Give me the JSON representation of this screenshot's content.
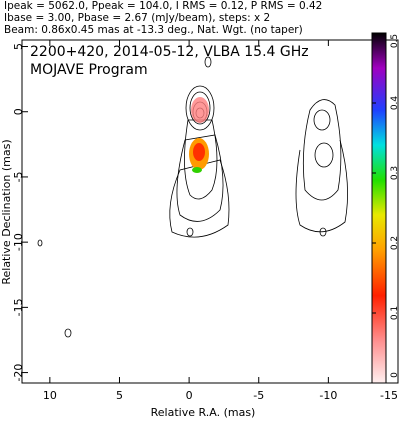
{
  "chart_data": {
    "type": "contour",
    "header": [
      "Ipeak = 5062.0, Ppeak = 104.0, I RMS = 0.12, P RMS = 0.42",
      "Ibase = 3.00, Pbase = 2.67 (mJy/beam), steps: x 2",
      "Beam: 0.86x0.45 mas at -13.3 deg., Nat. Wgt. (no taper)"
    ],
    "title": "2200+420, 2014-05-12, VLBA 15.4 GHz",
    "subtitle": "MOJAVE Program",
    "x_label": "Relative R.A. (mas)",
    "y_label": "Relative Declination (mas)",
    "xlim": [
      12,
      -15
    ],
    "xticks": [
      10,
      5,
      0,
      -5,
      -10,
      -15
    ],
    "ylim": [
      -20.8,
      5.5
    ],
    "yticks": [
      5,
      0,
      -5,
      -10,
      -15,
      -20
    ],
    "colorbar": {
      "lim": [
        0,
        0.5
      ],
      "ticks": [
        0,
        0.1,
        0.2,
        0.3,
        0.4,
        0.5
      ]
    }
  }
}
